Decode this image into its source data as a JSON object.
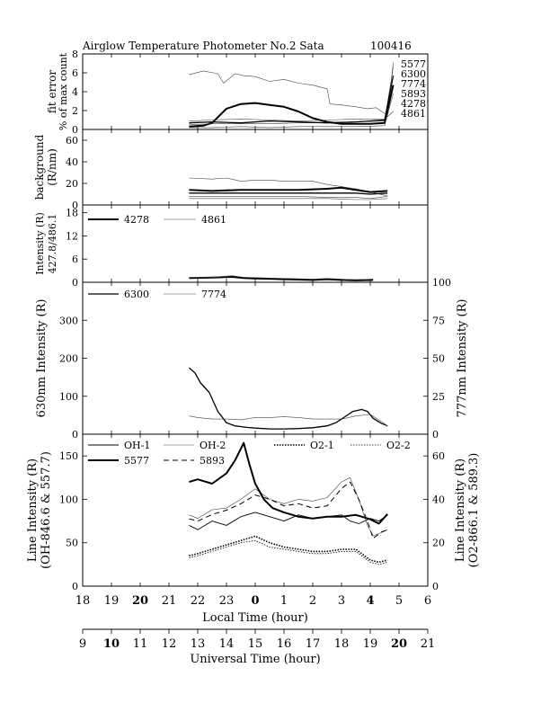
{
  "header": {
    "title": "Airglow Temperature Photometer No.2  Sata",
    "date": "100416"
  },
  "axes": {
    "lt_label": "Local Time (hour)",
    "ut_label": "Universal Time (hour)",
    "lt_ticks": [
      "18",
      "19",
      "20",
      "21",
      "22",
      "23",
      "0",
      "1",
      "2",
      "3",
      "4",
      "5",
      "6"
    ],
    "ut_ticks": [
      "9",
      "10",
      "11",
      "12",
      "13",
      "14",
      "15",
      "16",
      "17",
      "18",
      "19",
      "20",
      "21"
    ]
  },
  "chart_data": [
    {
      "type": "line",
      "panel": "fit-error",
      "ylabel_1": "fit error",
      "ylabel_2": "% of max count",
      "ylim": [
        0,
        8
      ],
      "yticks": [
        "0",
        "2",
        "4",
        "6",
        "8"
      ],
      "end_labels": [
        "5577",
        "6300",
        "7774",
        "5893",
        "4278",
        "4861"
      ],
      "series": [
        {
          "name": "5577",
          "style": "thin",
          "x": [
            21.7,
            22.2,
            22.7,
            22.9,
            23.3,
            23.6,
            0.0,
            0.5,
            1.0,
            1.5,
            2.0,
            2.5,
            2.6,
            3.0,
            3.5,
            3.9,
            4.2,
            4.6,
            4.8
          ],
          "y": [
            5.8,
            6.2,
            5.9,
            4.9,
            5.9,
            5.7,
            5.6,
            5.1,
            5.3,
            4.9,
            4.7,
            4.3,
            2.7,
            2.6,
            2.4,
            2.2,
            2.3,
            1.5,
            7.1
          ]
        },
        {
          "name": "5893",
          "style": "thick",
          "x": [
            21.7,
            22.2,
            22.5,
            23.0,
            23.5,
            0.0,
            0.5,
            1.0,
            1.5,
            2.0,
            2.5,
            3.0,
            3.5,
            4.0,
            4.5,
            4.8
          ],
          "y": [
            0.3,
            0.4,
            0.7,
            2.2,
            2.7,
            2.8,
            2.6,
            2.4,
            1.9,
            1.2,
            0.8,
            0.6,
            0.6,
            0.6,
            0.7,
            4.7
          ]
        },
        {
          "name": "4861",
          "style": "thin",
          "x": [
            21.7,
            22.5,
            23.5,
            0.5,
            1.5,
            2.5,
            3.5,
            4.5,
            4.8
          ],
          "y": [
            0.9,
            1.0,
            1.1,
            1.0,
            0.9,
            1.0,
            1.1,
            1.1,
            1.9
          ]
        },
        {
          "name": "6300",
          "style": "thin",
          "x": [
            21.7,
            22.5,
            23.5,
            0.5,
            1.5,
            2.5,
            3.5,
            4.5,
            4.8
          ],
          "y": [
            0.5,
            0.6,
            0.6,
            0.6,
            0.7,
            0.7,
            0.8,
            0.9,
            6.6
          ]
        },
        {
          "name": "7774",
          "style": "medium",
          "x": [
            21.7,
            22.5,
            23.5,
            0.5,
            1.5,
            2.5,
            3.5,
            4.5,
            4.8
          ],
          "y": [
            0.7,
            0.8,
            0.7,
            0.9,
            0.8,
            0.7,
            0.8,
            1.0,
            5.7
          ]
        },
        {
          "name": "4278",
          "style": "thin",
          "x": [
            21.7,
            22.5,
            23.5,
            0.5,
            1.5,
            2.5,
            3.5,
            4.5,
            4.8
          ],
          "y": [
            0.2,
            0.2,
            0.3,
            0.2,
            0.3,
            0.3,
            0.3,
            0.4,
            3.8
          ]
        }
      ]
    },
    {
      "type": "line",
      "panel": "background",
      "ylabel_1": "background",
      "ylabel_2": "(R/nm)",
      "ylim": [
        0,
        70
      ],
      "yticks": [
        "0",
        "20",
        "40",
        "60"
      ],
      "series": [
        {
          "style": "thin",
          "x": [
            21.7,
            22.5,
            23.0,
            23.5,
            0.0,
            0.5,
            1.0,
            1.5,
            2.0,
            2.5,
            3.0,
            3.5,
            4.0,
            4.5,
            4.6
          ],
          "y": [
            25,
            24,
            25,
            22,
            23,
            23,
            22,
            22,
            22,
            19,
            17,
            15,
            12,
            9,
            9
          ]
        },
        {
          "style": "thick",
          "x": [
            21.7,
            22.5,
            23.5,
            0.5,
            1.5,
            2.5,
            3.0,
            3.5,
            4.0,
            4.6
          ],
          "y": [
            14,
            13,
            14,
            14,
            14,
            15,
            16,
            14,
            12,
            13
          ]
        },
        {
          "style": "medium",
          "x": [
            21.7,
            22.5,
            23.5,
            0.5,
            1.5,
            2.5,
            3.5,
            4.0,
            4.6
          ],
          "y": [
            11,
            11,
            11,
            11,
            11,
            11,
            11,
            10,
            11
          ]
        },
        {
          "style": "thin",
          "x": [
            21.7,
            22.5,
            23.5,
            0.5,
            1.5,
            2.5,
            3.5,
            4.0,
            4.6
          ],
          "y": [
            8,
            8,
            8,
            8,
            8,
            7,
            7,
            6,
            8
          ]
        },
        {
          "style": "thin",
          "x": [
            21.7,
            22.5,
            23.5,
            0.5,
            1.5,
            2.5,
            3.5,
            4.0,
            4.6
          ],
          "y": [
            6,
            6,
            6,
            6,
            6,
            6,
            5,
            5,
            6
          ]
        }
      ]
    },
    {
      "type": "line",
      "panel": "427.8-486.1",
      "ylabel_1": "Intensity (R)",
      "ylabel_2": "427.8/486.1",
      "ylim": [
        0,
        20
      ],
      "yticks": [
        "0",
        "6",
        "12",
        "18"
      ],
      "series": [
        {
          "name": "4278",
          "style": "thick",
          "x": [
            21.7,
            22.5,
            23.2,
            23.6,
            0.0,
            0.5,
            1.0,
            1.5,
            2.0,
            2.5,
            3.0,
            3.5,
            4.1
          ],
          "y": [
            1.1,
            1.2,
            1.4,
            1.1,
            1.0,
            0.9,
            0.8,
            0.7,
            0.6,
            0.8,
            0.6,
            0.5,
            0.6
          ]
        },
        {
          "name": "4861",
          "style": "thin",
          "x": [
            21.7,
            22.5,
            23.2,
            23.6,
            0.0,
            0.5,
            1.0,
            1.5,
            2.0,
            2.5,
            3.0,
            3.5,
            4.1
          ],
          "y": [
            1.2,
            1.3,
            1.7,
            1.3,
            1.2,
            1.1,
            1.0,
            0.9,
            0.8,
            1.0,
            0.8,
            0.7,
            0.8
          ]
        }
      ]
    },
    {
      "type": "line",
      "panel": "630-777",
      "ylabel_left": "630nm Intensity (R)",
      "ylabel_right": "777nm Intensity (R)",
      "ylim": [
        0,
        400
      ],
      "ylim_right": [
        0,
        100
      ],
      "yticks": [
        "0",
        "100",
        "200",
        "300"
      ],
      "yticks_right": [
        "0",
        "25",
        "50",
        "75",
        "100"
      ],
      "series": [
        {
          "name": "6300",
          "style": "medium",
          "x": [
            21.7,
            21.9,
            22.1,
            22.4,
            22.7,
            23.0,
            23.3,
            23.7,
            0.0,
            0.5,
            1.0,
            1.5,
            2.0,
            2.5,
            2.8,
            3.1,
            3.4,
            3.7,
            3.9,
            4.1,
            4.4,
            4.6
          ],
          "y": [
            175,
            162,
            135,
            110,
            60,
            30,
            22,
            18,
            16,
            14,
            14,
            15,
            17,
            22,
            30,
            45,
            60,
            65,
            60,
            42,
            28,
            22
          ]
        },
        {
          "name": "7774",
          "style": "thin",
          "axis": "right",
          "x": [
            21.7,
            22.0,
            22.5,
            23.0,
            23.5,
            0.0,
            0.5,
            1.0,
            1.5,
            2.0,
            2.5,
            3.0,
            3.5,
            4.0,
            4.5,
            4.6
          ],
          "y": [
            12,
            11,
            10,
            10,
            9.5,
            11,
            11,
            11.5,
            11,
            10,
            10,
            10,
            12,
            13,
            7,
            5
          ]
        }
      ]
    },
    {
      "type": "line",
      "panel": "line-intensity",
      "ylabel_left_1": "Line Intensity (R)",
      "ylabel_left_2": "(OH-846.6 & 557.7)",
      "ylabel_right_1": "Line Intensity (R)",
      "ylabel_right_2": "(O2-866.1 & 589.3)",
      "ylim": [
        0,
        175
      ],
      "ylim_right": [
        0,
        70
      ],
      "yticks": [
        "0",
        "50",
        "100",
        "150"
      ],
      "yticks_right": [
        "0",
        "20",
        "40",
        "60"
      ],
      "series": [
        {
          "name": "OH-1",
          "style": "thin-dark",
          "x": [
            21.7,
            22.0,
            22.5,
            23.0,
            23.5,
            0.0,
            0.5,
            1.0,
            1.5,
            2.0,
            2.5,
            3.0,
            3.3,
            3.6,
            4.0,
            4.3,
            4.6
          ],
          "y": [
            70,
            65,
            75,
            70,
            80,
            85,
            80,
            75,
            82,
            78,
            80,
            82,
            75,
            72,
            78,
            75,
            82
          ]
        },
        {
          "name": "OH-2",
          "style": "thin",
          "x": [
            21.7,
            22.0,
            22.5,
            23.0,
            23.5,
            0.0,
            0.5,
            1.0,
            1.5,
            2.0,
            2.5,
            3.0,
            3.3,
            3.6,
            3.9,
            4.1,
            4.4,
            4.6
          ],
          "y": [
            82,
            78,
            88,
            90,
            100,
            112,
            100,
            95,
            100,
            98,
            102,
            120,
            125,
            100,
            70,
            58,
            62,
            65
          ]
        },
        {
          "name": "O2-1",
          "style": "dotted-thick",
          "axis": "right",
          "x": [
            21.7,
            22.0,
            22.5,
            23.0,
            23.5,
            0.0,
            0.5,
            1.0,
            1.5,
            2.0,
            2.5,
            3.0,
            3.5,
            3.8,
            4.0,
            4.3,
            4.6
          ],
          "y": [
            14,
            15,
            17,
            19,
            21,
            23,
            20,
            18,
            17,
            16,
            16,
            17,
            17,
            14,
            12,
            11,
            12
          ]
        },
        {
          "name": "O2-2",
          "style": "dotted-thin",
          "axis": "right",
          "x": [
            21.7,
            22.0,
            22.5,
            23.0,
            23.5,
            0.0,
            0.5,
            1.0,
            1.5,
            2.0,
            2.5,
            3.0,
            3.5,
            3.8,
            4.0,
            4.3,
            4.6
          ],
          "y": [
            13,
            14,
            16,
            18,
            20,
            21,
            18,
            17,
            16,
            15,
            15,
            16,
            16,
            13,
            11,
            10,
            11
          ]
        },
        {
          "name": "5577",
          "style": "thick",
          "x": [
            21.7,
            22.0,
            22.5,
            23.0,
            23.3,
            23.6,
            23.8,
            0.0,
            0.3,
            0.6,
            1.0,
            1.5,
            2.0,
            2.5,
            3.0,
            3.5,
            4.0,
            4.3,
            4.6
          ],
          "y": [
            120,
            123,
            118,
            130,
            145,
            165,
            140,
            118,
            100,
            90,
            85,
            80,
            78,
            80,
            80,
            82,
            77,
            72,
            83
          ]
        },
        {
          "name": "5893",
          "style": "dashed",
          "axis": "right",
          "x": [
            21.7,
            22.0,
            22.5,
            23.0,
            23.5,
            0.0,
            0.5,
            1.0,
            1.5,
            2.0,
            2.5,
            3.0,
            3.3,
            3.6,
            3.9,
            4.1,
            4.4,
            4.6
          ],
          "y": [
            31,
            30,
            33,
            35,
            38,
            42,
            40,
            37,
            38,
            36,
            37,
            45,
            48,
            40,
            30,
            22,
            25,
            26
          ]
        }
      ]
    }
  ]
}
